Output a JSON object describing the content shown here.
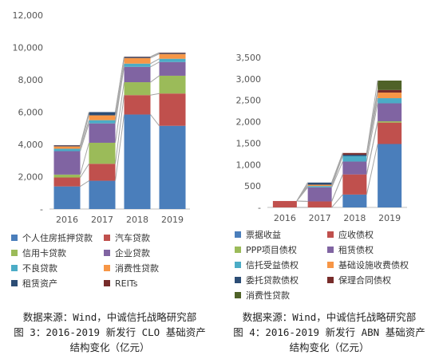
{
  "chart_data": [
    {
      "type": "bar",
      "stacked": true,
      "categories": [
        "2016",
        "2017",
        "2018",
        "2019"
      ],
      "ylim": [
        0,
        12000
      ],
      "yticks": [
        "-",
        "2,000",
        "4,000",
        "6,000",
        "8,000",
        "10,000",
        "12,000"
      ],
      "grid": false,
      "legend_position": "bottom",
      "series": [
        {
          "name": "个人住房抵押贷款",
          "color": "#4a7ebb",
          "values": [
            1400,
            1750,
            5850,
            5150
          ]
        },
        {
          "name": "汽车贷款",
          "color": "#c0504d",
          "values": [
            550,
            1050,
            1200,
            2000
          ]
        },
        {
          "name": "信用卡贷款",
          "color": "#9bbb59",
          "values": [
            180,
            1300,
            800,
            1100
          ]
        },
        {
          "name": "企业贷款",
          "color": "#8064a2",
          "values": [
            1450,
            1200,
            950,
            850
          ]
        },
        {
          "name": "不良贷款",
          "color": "#4bacc6",
          "values": [
            150,
            200,
            200,
            200
          ]
        },
        {
          "name": "消费性贷款",
          "color": "#f79646",
          "values": [
            150,
            300,
            350,
            300
          ]
        },
        {
          "name": "租赁资产",
          "color": "#2c4d75",
          "values": [
            50,
            200,
            60,
            50
          ]
        },
        {
          "name": "REITs",
          "color": "#772c2a",
          "values": [
            20,
            0,
            20,
            30
          ]
        }
      ]
    },
    {
      "type": "bar",
      "stacked": true,
      "categories": [
        "2016",
        "2017",
        "2018",
        "2019"
      ],
      "ylim": [
        0,
        3500
      ],
      "yticks": [
        "-",
        "500",
        "1,000",
        "1,500",
        "2,000",
        "2,500",
        "3,000",
        "3,500"
      ],
      "grid": false,
      "legend_position": "bottom",
      "series": [
        {
          "name": "票据收益",
          "color": "#4a7ebb",
          "values": [
            0,
            0,
            300,
            1480
          ]
        },
        {
          "name": "应收债权",
          "color": "#c0504d",
          "values": [
            150,
            140,
            470,
            500
          ]
        },
        {
          "name": "PPP项目债权",
          "color": "#9bbb59",
          "values": [
            0,
            0,
            0,
            30
          ]
        },
        {
          "name": "租赁债权",
          "color": "#8064a2",
          "values": [
            0,
            330,
            300,
            420
          ]
        },
        {
          "name": "信托受益债权",
          "color": "#4bacc6",
          "values": [
            0,
            30,
            130,
            120
          ]
        },
        {
          "name": "基础设施收费债权",
          "color": "#f79646",
          "values": [
            0,
            30,
            0,
            130
          ]
        },
        {
          "name": "委托贷款债权",
          "color": "#2c4d75",
          "values": [
            0,
            50,
            30,
            0
          ]
        },
        {
          "name": "保理合同债权",
          "color": "#772c2a",
          "values": [
            0,
            0,
            40,
            60
          ]
        },
        {
          "name": "消费性贷款",
          "color": "#4f6228",
          "values": [
            0,
            0,
            0,
            220
          ]
        }
      ]
    }
  ],
  "captions": {
    "left": {
      "line1": "数据来源：Wind，中诚信托战略研究部",
      "line2": "图 3：2016-2019 新发行 CLO 基础资产",
      "line3": "结构变化（亿元）"
    },
    "right": {
      "line1": "数据来源：Wind，中诚信托战略研究部",
      "line2": "图 4：2016-2019 新发行 ABN 基础资产",
      "line3": "结构变化（亿元）"
    }
  }
}
